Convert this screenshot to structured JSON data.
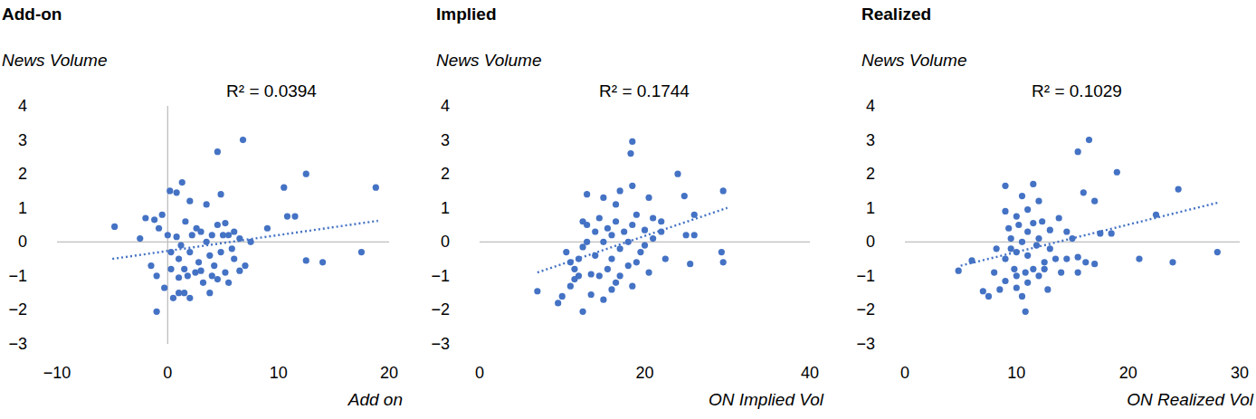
{
  "chart_data": [
    {
      "type": "scatter",
      "title": "Add-on",
      "y_label": "News Volume",
      "x_label": "Add on",
      "annotation": "R² = 0.0394",
      "color": "#4472c4",
      "grid": false,
      "marker": "circle",
      "xlim": [
        -10,
        20
      ],
      "xticks": [
        {
          "value": -10,
          "label": "−10"
        },
        0,
        10,
        20
      ],
      "ylim": [
        -3,
        4
      ],
      "yticks": [
        {
          "value": -3,
          "label": "−3"
        },
        {
          "value": -2,
          "label": "−2"
        },
        {
          "value": -1,
          "label": "−1"
        },
        0,
        1,
        2,
        3,
        4
      ],
      "x": [
        -4.8,
        -2.5,
        -2,
        -1.2,
        -0.8,
        -0.5,
        -1.5,
        -1,
        -1,
        -0.3,
        0,
        0.2,
        0.8,
        0.3,
        0.5,
        0.8,
        1,
        1,
        1.3,
        1.2,
        1.5,
        1.5,
        1.6,
        1.8,
        2,
        2,
        2,
        2.2,
        2.5,
        2.8,
        3,
        3,
        3.2,
        3.5,
        3.5,
        3.8,
        4,
        4,
        4.2,
        4.5,
        4.5,
        4.5,
        4.8,
        4.8,
        5,
        5.2,
        5.2,
        5.5,
        5.5,
        6,
        6,
        6.5,
        6.8,
        7,
        7.5,
        9,
        10.5,
        10.8,
        11.5,
        12.5,
        12.5,
        14,
        17.5,
        18.8,
        3.8,
        2.6,
        1.0,
        0.3,
        5.8,
        6.5
      ],
      "values": [
        0.45,
        0.1,
        0.7,
        0.65,
        0.4,
        0.8,
        -0.7,
        -1.0,
        -2.05,
        -1.35,
        0.2,
        1.5,
        1.45,
        -0.3,
        -1.65,
        0.15,
        -0.5,
        -1.5,
        1.75,
        -0.1,
        -1.5,
        -0.8,
        0.6,
        -1.0,
        1.2,
        -1.65,
        -0.3,
        0.2,
        -0.9,
        -0.6,
        0.3,
        -0.85,
        -1.2,
        1.1,
        0.0,
        -0.4,
        -1.0,
        0.2,
        -0.7,
        2.65,
        0.5,
        -1.1,
        1.4,
        -0.3,
        0.2,
        0.55,
        -0.9,
        0.2,
        -1.2,
        0.3,
        -0.5,
        -0.85,
        3.0,
        -0.7,
        0.0,
        0.4,
        1.6,
        0.75,
        0.75,
        2.0,
        -0.55,
        -0.6,
        -0.3,
        1.6,
        -1.5,
        0.4,
        -1.05,
        -0.8,
        -0.2,
        0.1
      ],
      "trend": {
        "x": [
          -5,
          19
        ],
        "values": [
          -0.5,
          0.62
        ],
        "line_style": "dotted"
      }
    },
    {
      "type": "scatter",
      "title": "Implied",
      "y_label": "News Volume",
      "x_label": "ON Implied Vol",
      "annotation": "R² = 0.1744",
      "color": "#4472c4",
      "grid": false,
      "marker": "circle",
      "xlim": [
        0,
        40
      ],
      "xticks": [
        0,
        20,
        40
      ],
      "ylim": [
        -3,
        4
      ],
      "yticks": [
        {
          "value": -3,
          "label": "−3"
        },
        {
          "value": -2,
          "label": "−2"
        },
        {
          "value": -1,
          "label": "−1"
        },
        0,
        1,
        2,
        3,
        4
      ],
      "x": [
        18.5,
        18.3,
        24,
        29.5,
        17,
        20.5,
        24.8,
        18.5,
        13,
        15,
        16.5,
        26,
        21,
        22,
        20,
        29.3,
        29.5,
        25.5,
        26,
        25,
        22.5,
        20.5,
        19,
        7,
        10,
        9.5,
        11,
        12.5,
        13.5,
        15,
        16.5,
        12,
        12.5,
        13,
        11.5,
        14,
        14,
        15,
        15.5,
        16,
        16,
        17,
        17.5,
        18,
        18,
        18.5,
        19,
        19.5,
        20,
        13.5,
        14.5,
        12,
        11,
        10.5,
        15.5,
        16.5,
        17,
        13,
        18.5,
        21,
        22,
        14.5,
        12.5,
        16,
        11.5
      ],
      "values": [
        2.95,
        2.6,
        2.0,
        1.5,
        1.5,
        1.3,
        1.35,
        1.65,
        1.4,
        1.3,
        1.1,
        0.8,
        0.7,
        0.6,
        0.35,
        -0.3,
        -0.6,
        -0.65,
        0.2,
        0.2,
        -0.5,
        -0.9,
        -0.6,
        -1.45,
        -1.6,
        -1.8,
        -1.3,
        -2.05,
        -1.55,
        -1.7,
        -1.2,
        -0.5,
        0.6,
        0.5,
        -0.8,
        -0.4,
        0.3,
        0.0,
        -0.8,
        -0.5,
        0.2,
        -0.2,
        0.3,
        -0.7,
        0.0,
        0.5,
        0.8,
        -0.3,
        -0.1,
        -0.95,
        -1.0,
        -1.0,
        -0.6,
        -0.3,
        0.4,
        0.6,
        -1.0,
        0.0,
        -1.3,
        0.1,
        0.3,
        0.7,
        -0.15,
        -1.4,
        -1.1
      ],
      "trend": {
        "x": [
          7,
          30
        ],
        "values": [
          -0.9,
          1.0
        ],
        "line_style": "dotted"
      }
    },
    {
      "type": "scatter",
      "title": "Realized",
      "y_label": "News Volume",
      "x_label": "ON Realized Vol",
      "annotation": "R² = 0.1029",
      "color": "#4472c4",
      "grid": false,
      "marker": "circle",
      "xlim": [
        0,
        30
      ],
      "xticks": [
        0,
        10,
        20,
        30
      ],
      "ylim": [
        -3,
        4
      ],
      "yticks": [
        {
          "value": -3,
          "label": "−3"
        },
        {
          "value": -2,
          "label": "−2"
        },
        {
          "value": -1,
          "label": "−1"
        },
        0,
        1,
        2,
        3,
        4
      ],
      "x": [
        16.5,
        15.5,
        19,
        24.5,
        9,
        11.5,
        16,
        17,
        10.5,
        12,
        13.8,
        10,
        11,
        11.5,
        22.5,
        17.5,
        18.5,
        15,
        28,
        24,
        21,
        17,
        15.5,
        14.5,
        12.5,
        12.5,
        11,
        10.5,
        10.8,
        10,
        9,
        8.5,
        7.5,
        7,
        4.8,
        6,
        8,
        9,
        9.5,
        9.5,
        10,
        10.5,
        11,
        11,
        11.5,
        12,
        12,
        13,
        13,
        14,
        14.5,
        9.3,
        9.8,
        10.2,
        10.8,
        11.8,
        8.2,
        10,
        13.5,
        12.8,
        15.5,
        16.2,
        12.3,
        9
      ],
      "values": [
        3.0,
        2.65,
        2.05,
        1.55,
        1.65,
        1.7,
        1.45,
        1.2,
        1.35,
        1.2,
        0.7,
        0.75,
        0.95,
        0.55,
        0.8,
        0.25,
        0.25,
        0.1,
        -0.3,
        -0.6,
        -0.5,
        -0.65,
        -0.45,
        -0.5,
        -0.8,
        -0.6,
        -1.2,
        -1.6,
        -2.05,
        -1.35,
        -1.15,
        -1.4,
        -1.6,
        -1.45,
        -0.85,
        -0.55,
        -0.9,
        -0.5,
        0.1,
        -0.2,
        -0.3,
        0.0,
        0.3,
        -0.4,
        -0.8,
        -1.0,
        0.1,
        0.35,
        -0.2,
        -0.9,
        0.3,
        0.4,
        -0.8,
        0.5,
        -0.9,
        -0.1,
        -0.2,
        -1.0,
        -0.5,
        -1.4,
        -0.9,
        -0.6,
        0.6,
        0.9
      ],
      "trend": {
        "x": [
          5,
          28
        ],
        "values": [
          -0.7,
          1.15
        ],
        "line_style": "dotted"
      }
    }
  ]
}
